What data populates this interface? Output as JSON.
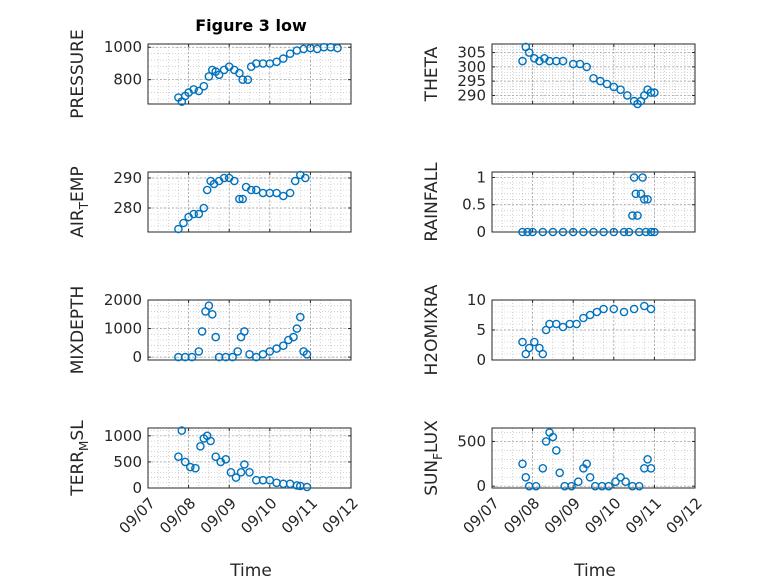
{
  "figure": {
    "title": "Figure 3 low",
    "xlabel": "Time"
  },
  "colors": {
    "marker": "#0072BD",
    "axis": "#262626",
    "grid": "#b8b8b8",
    "background": "#ffffff"
  },
  "chart_data": [
    {
      "type": "scatter",
      "title": "Figure 3 low",
      "ylabel": "PRESSURE",
      "xlabel": "",
      "x_ticks": [
        "09/07",
        "09/08",
        "09/09",
        "09/10",
        "09/11",
        "09/12"
      ],
      "xlim": [
        "09/07",
        "09/12"
      ],
      "ylim": [
        650,
        1020
      ],
      "yticks": [
        800,
        1000
      ],
      "grid": true,
      "points": [
        [
          "09/07 18:00",
          690
        ],
        [
          "09/07 20:00",
          665
        ],
        [
          "09/07 22:00",
          700
        ],
        [
          "09/08 00:00",
          720
        ],
        [
          "09/08 03:00",
          740
        ],
        [
          "09/08 06:00",
          730
        ],
        [
          "09/08 09:00",
          760
        ],
        [
          "09/08 12:00",
          820
        ],
        [
          "09/08 14:00",
          860
        ],
        [
          "09/08 16:00",
          850
        ],
        [
          "09/08 18:00",
          830
        ],
        [
          "09/08 21:00",
          860
        ],
        [
          "09/09 00:00",
          880
        ],
        [
          "09/09 03:00",
          860
        ],
        [
          "09/09 06:00",
          840
        ],
        [
          "09/09 08:00",
          800
        ],
        [
          "09/09 11:00",
          800
        ],
        [
          "09/09 13:00",
          880
        ],
        [
          "09/09 16:00",
          900
        ],
        [
          "09/09 20:00",
          900
        ],
        [
          "09/10 00:00",
          900
        ],
        [
          "09/10 04:00",
          910
        ],
        [
          "09/10 08:00",
          930
        ],
        [
          "09/10 12:00",
          960
        ],
        [
          "09/10 16:00",
          980
        ],
        [
          "09/10 20:00",
          990
        ],
        [
          "09/11 00:00",
          995
        ],
        [
          "09/11 04:00",
          990
        ],
        [
          "09/11 08:00",
          1000
        ],
        [
          "09/11 12:00",
          1000
        ],
        [
          "09/11 16:00",
          995
        ]
      ]
    },
    {
      "type": "scatter",
      "ylabel": "THETA",
      "xlabel": "",
      "x_ticks": [
        "09/07",
        "09/08",
        "09/09",
        "09/10",
        "09/11",
        "09/12"
      ],
      "xlim": [
        "09/07",
        "09/12"
      ],
      "ylim": [
        287,
        308
      ],
      "yticks": [
        290,
        295,
        300,
        305
      ],
      "grid": true,
      "points": [
        [
          "09/07 18:00",
          302
        ],
        [
          "09/07 20:00",
          307
        ],
        [
          "09/07 22:00",
          305
        ],
        [
          "09/08 01:00",
          303
        ],
        [
          "09/08 04:00",
          302
        ],
        [
          "09/08 07:00",
          303
        ],
        [
          "09/08 10:00",
          302
        ],
        [
          "09/08 14:00",
          302
        ],
        [
          "09/08 18:00",
          302
        ],
        [
          "09/09 00:00",
          301
        ],
        [
          "09/09 04:00",
          301
        ],
        [
          "09/09 08:00",
          300
        ],
        [
          "09/09 12:00",
          296
        ],
        [
          "09/09 16:00",
          295
        ],
        [
          "09/09 20:00",
          294
        ],
        [
          "09/10 00:00",
          293
        ],
        [
          "09/10 04:00",
          292
        ],
        [
          "09/10 08:00",
          290
        ],
        [
          "09/10 12:00",
          288
        ],
        [
          "09/10 14:00",
          287
        ],
        [
          "09/10 16:00",
          288
        ],
        [
          "09/10 18:00",
          290
        ],
        [
          "09/10 20:00",
          292
        ],
        [
          "09/10 22:00",
          291
        ],
        [
          "09/11 00:00",
          291
        ]
      ]
    },
    {
      "type": "scatter",
      "ylabel": "AIR_TEMP",
      "xlabel": "",
      "x_ticks": [
        "09/07",
        "09/08",
        "09/09",
        "09/10",
        "09/11",
        "09/12"
      ],
      "xlim": [
        "09/07",
        "09/12"
      ],
      "ylim": [
        272,
        292
      ],
      "yticks": [
        280,
        290
      ],
      "grid": true,
      "points": [
        [
          "09/07 18:00",
          273
        ],
        [
          "09/07 21:00",
          275
        ],
        [
          "09/08 00:00",
          277
        ],
        [
          "09/08 03:00",
          278
        ],
        [
          "09/08 06:00",
          278
        ],
        [
          "09/08 09:00",
          280
        ],
        [
          "09/08 11:00",
          286
        ],
        [
          "09/08 13:00",
          289
        ],
        [
          "09/08 15:00",
          288
        ],
        [
          "09/08 18:00",
          289
        ],
        [
          "09/08 21:00",
          290
        ],
        [
          "09/09 00:00",
          290
        ],
        [
          "09/09 03:00",
          289
        ],
        [
          "09/09 06:00",
          283
        ],
        [
          "09/09 08:00",
          283
        ],
        [
          "09/09 10:00",
          287
        ],
        [
          "09/09 13:00",
          286
        ],
        [
          "09/09 16:00",
          286
        ],
        [
          "09/09 20:00",
          285
        ],
        [
          "09/10 00:00",
          285
        ],
        [
          "09/10 04:00",
          285
        ],
        [
          "09/10 08:00",
          284
        ],
        [
          "09/10 12:00",
          285
        ],
        [
          "09/10 15:00",
          289
        ],
        [
          "09/10 18:00",
          291
        ],
        [
          "09/10 21:00",
          290
        ]
      ]
    },
    {
      "type": "scatter",
      "ylabel": "RAINFALL",
      "xlabel": "",
      "x_ticks": [
        "09/07",
        "09/08",
        "09/09",
        "09/10",
        "09/11",
        "09/12"
      ],
      "xlim": [
        "09/07",
        "09/12"
      ],
      "ylim": [
        0,
        1.1
      ],
      "yticks": [
        0,
        0.5,
        1
      ],
      "grid": true,
      "points": [
        [
          "09/07 18:00",
          0
        ],
        [
          "09/07 21:00",
          0
        ],
        [
          "09/08 00:00",
          0
        ],
        [
          "09/08 06:00",
          0
        ],
        [
          "09/08 12:00",
          0
        ],
        [
          "09/08 18:00",
          0
        ],
        [
          "09/09 00:00",
          0
        ],
        [
          "09/09 06:00",
          0
        ],
        [
          "09/09 12:00",
          0
        ],
        [
          "09/09 18:00",
          0
        ],
        [
          "09/10 00:00",
          0
        ],
        [
          "09/10 06:00",
          0
        ],
        [
          "09/10 09:00",
          0
        ],
        [
          "09/10 11:00",
          0.3
        ],
        [
          "09/10 12:00",
          1
        ],
        [
          "09/10 13:00",
          0.7
        ],
        [
          "09/10 14:00",
          0.3
        ],
        [
          "09/10 15:00",
          0
        ],
        [
          "09/10 16:00",
          0.7
        ],
        [
          "09/10 17:00",
          1
        ],
        [
          "09/10 18:00",
          0.6
        ],
        [
          "09/10 19:00",
          0
        ],
        [
          "09/10 20:00",
          0.6
        ],
        [
          "09/10 22:00",
          0
        ],
        [
          "09/11 00:00",
          0
        ]
      ]
    },
    {
      "type": "scatter",
      "ylabel": "MIXDEPTH",
      "xlabel": "",
      "x_ticks": [
        "09/07",
        "09/08",
        "09/09",
        "09/10",
        "09/11",
        "09/12"
      ],
      "xlim": [
        "09/07",
        "09/12"
      ],
      "ylim": [
        -100,
        2000
      ],
      "yticks": [
        0,
        1000,
        2000
      ],
      "grid": true,
      "points": [
        [
          "09/07 18:00",
          0
        ],
        [
          "09/07 22:00",
          0
        ],
        [
          "09/08 02:00",
          0
        ],
        [
          "09/08 06:00",
          200
        ],
        [
          "09/08 08:00",
          900
        ],
        [
          "09/08 10:00",
          1600
        ],
        [
          "09/08 12:00",
          1800
        ],
        [
          "09/08 14:00",
          1500
        ],
        [
          "09/08 16:00",
          700
        ],
        [
          "09/08 18:00",
          0
        ],
        [
          "09/08 22:00",
          0
        ],
        [
          "09/09 02:00",
          0
        ],
        [
          "09/09 05:00",
          200
        ],
        [
          "09/09 07:00",
          700
        ],
        [
          "09/09 09:00",
          900
        ],
        [
          "09/09 12:00",
          100
        ],
        [
          "09/09 16:00",
          0
        ],
        [
          "09/09 20:00",
          100
        ],
        [
          "09/10 00:00",
          200
        ],
        [
          "09/10 04:00",
          300
        ],
        [
          "09/10 08:00",
          400
        ],
        [
          "09/10 11:00",
          600
        ],
        [
          "09/10 14:00",
          700
        ],
        [
          "09/10 16:00",
          1000
        ],
        [
          "09/10 18:00",
          1400
        ],
        [
          "09/10 20:00",
          200
        ],
        [
          "09/10 22:00",
          100
        ]
      ]
    },
    {
      "type": "scatter",
      "ylabel": "H2OMIXRA",
      "xlabel": "",
      "x_ticks": [
        "09/07",
        "09/08",
        "09/09",
        "09/10",
        "09/11",
        "09/12"
      ],
      "xlim": [
        "09/07",
        "09/12"
      ],
      "ylim": [
        0,
        10
      ],
      "yticks": [
        0,
        5,
        10
      ],
      "grid": true,
      "points": [
        [
          "09/07 18:00",
          3
        ],
        [
          "09/07 20:00",
          1
        ],
        [
          "09/07 22:00",
          2
        ],
        [
          "09/08 01:00",
          3
        ],
        [
          "09/08 04:00",
          2
        ],
        [
          "09/08 06:00",
          1
        ],
        [
          "09/08 08:00",
          5
        ],
        [
          "09/08 10:00",
          6
        ],
        [
          "09/08 14:00",
          6
        ],
        [
          "09/08 18:00",
          5.5
        ],
        [
          "09/08 22:00",
          6
        ],
        [
          "09/09 02:00",
          6
        ],
        [
          "09/09 06:00",
          7
        ],
        [
          "09/09 10:00",
          7.5
        ],
        [
          "09/09 14:00",
          8
        ],
        [
          "09/09 18:00",
          8.5
        ],
        [
          "09/10 00:00",
          8.5
        ],
        [
          "09/10 06:00",
          8
        ],
        [
          "09/10 12:00",
          8.5
        ],
        [
          "09/10 18:00",
          9
        ],
        [
          "09/10 22:00",
          8.5
        ]
      ]
    },
    {
      "type": "scatter",
      "ylabel": "TERR_MSL",
      "xlabel": "Time",
      "x_ticks": [
        "09/07",
        "09/08",
        "09/09",
        "09/10",
        "09/11",
        "09/12"
      ],
      "xlim": [
        "09/07",
        "09/12"
      ],
      "ylim": [
        0,
        1150
      ],
      "yticks": [
        0,
        500,
        1000
      ],
      "grid": true,
      "points": [
        [
          "09/07 18:00",
          600
        ],
        [
          "09/07 20:00",
          1100
        ],
        [
          "09/07 22:00",
          500
        ],
        [
          "09/08 01:00",
          400
        ],
        [
          "09/08 04:00",
          380
        ],
        [
          "09/08 07:00",
          800
        ],
        [
          "09/08 09:00",
          950
        ],
        [
          "09/08 11:00",
          1000
        ],
        [
          "09/08 13:00",
          900
        ],
        [
          "09/08 16:00",
          600
        ],
        [
          "09/08 19:00",
          500
        ],
        [
          "09/08 22:00",
          550
        ],
        [
          "09/09 01:00",
          300
        ],
        [
          "09/09 04:00",
          200
        ],
        [
          "09/09 07:00",
          300
        ],
        [
          "09/09 09:00",
          450
        ],
        [
          "09/09 12:00",
          300
        ],
        [
          "09/09 16:00",
          150
        ],
        [
          "09/09 20:00",
          150
        ],
        [
          "09/10 00:00",
          150
        ],
        [
          "09/10 04:00",
          100
        ],
        [
          "09/10 08:00",
          80
        ],
        [
          "09/10 12:00",
          80
        ],
        [
          "09/10 16:00",
          50
        ],
        [
          "09/10 18:00",
          40
        ],
        [
          "09/10 22:00",
          20
        ]
      ]
    },
    {
      "type": "scatter",
      "ylabel": "SUN_FLUX",
      "xlabel": "Time",
      "x_ticks": [
        "09/07",
        "09/08",
        "09/09",
        "09/10",
        "09/11",
        "09/12"
      ],
      "xlim": [
        "09/07",
        "09/12"
      ],
      "ylim": [
        -20,
        650
      ],
      "yticks": [
        0,
        500
      ],
      "grid": true,
      "points": [
        [
          "09/07 18:00",
          250
        ],
        [
          "09/07 20:00",
          100
        ],
        [
          "09/07 22:00",
          0
        ],
        [
          "09/08 02:00",
          0
        ],
        [
          "09/08 06:00",
          200
        ],
        [
          "09/08 08:00",
          500
        ],
        [
          "09/08 10:00",
          600
        ],
        [
          "09/08 12:00",
          550
        ],
        [
          "09/08 14:00",
          400
        ],
        [
          "09/08 16:00",
          150
        ],
        [
          "09/08 19:00",
          0
        ],
        [
          "09/08 23:00",
          0
        ],
        [
          "09/09 03:00",
          50
        ],
        [
          "09/09 06:00",
          200
        ],
        [
          "09/09 08:00",
          250
        ],
        [
          "09/09 10:00",
          100
        ],
        [
          "09/09 13:00",
          0
        ],
        [
          "09/09 17:00",
          0
        ],
        [
          "09/09 21:00",
          0
        ],
        [
          "09/10 01:00",
          50
        ],
        [
          "09/10 04:00",
          100
        ],
        [
          "09/10 07:00",
          50
        ],
        [
          "09/10 11:00",
          0
        ],
        [
          "09/10 15:00",
          0
        ],
        [
          "09/10 18:00",
          200
        ],
        [
          "09/10 20:00",
          300
        ],
        [
          "09/10 22:00",
          200
        ]
      ]
    }
  ]
}
